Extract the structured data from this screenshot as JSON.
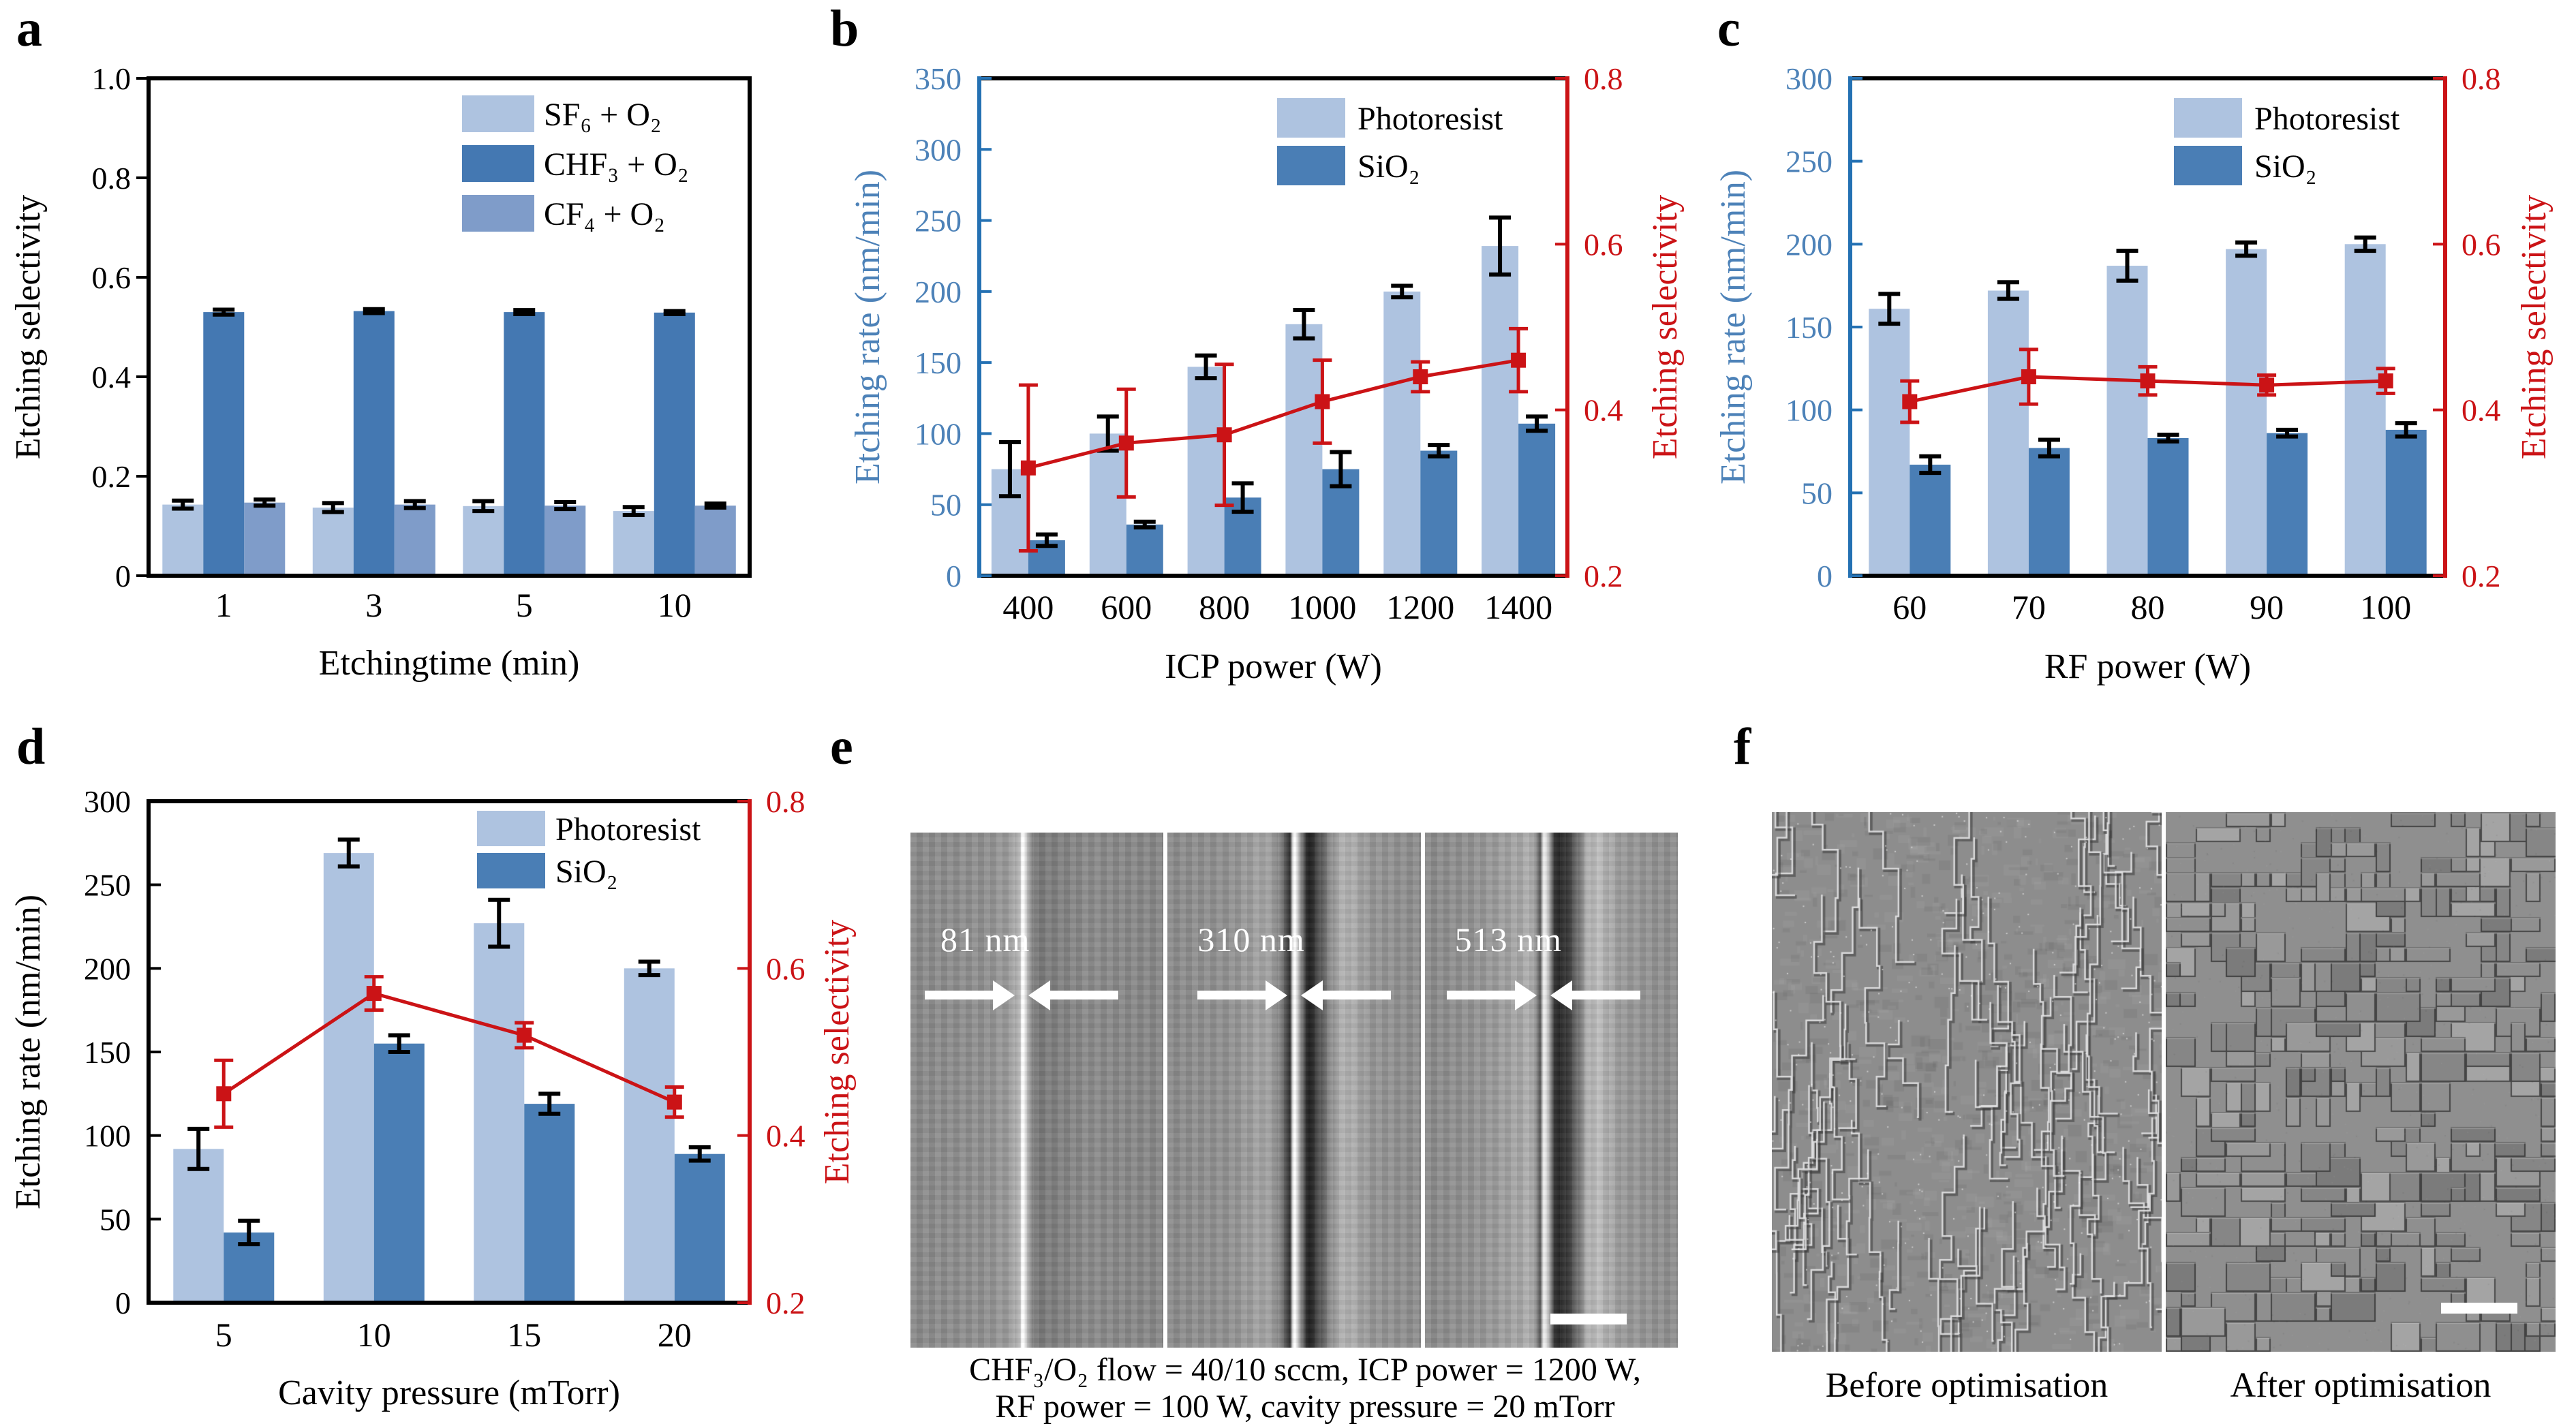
{
  "colors": {
    "photoresist_bar": "#aec3e0",
    "sio2_bar": "#4a7eb5",
    "sf6_bar": "#aec3e0",
    "chf3_bar": "#4478b2",
    "cf4_bar": "#7f9cc9",
    "selectivity_red": "#cb1316",
    "axis_blue_spine": "#2471b3",
    "axis_blue_text": "#4d82b8",
    "axis_black": "#000000"
  },
  "panels": {
    "a": {
      "label": "a"
    },
    "b": {
      "label": "b"
    },
    "c": {
      "label": "c"
    },
    "d": {
      "label": "d"
    },
    "e": {
      "label": "e",
      "measurements": [
        "81 nm",
        "310 nm",
        "513 nm"
      ],
      "caption_line1": "CHF₃/O₂ flow = 40/10 sccm, ICP power = 1200 W,",
      "caption_line2": "RF power = 100 W, cavity pressure = 20 mTorr"
    },
    "f": {
      "label": "f",
      "before_label": "Before optimisation",
      "after_label": "After optimisation"
    }
  },
  "chart_data": [
    {
      "panel": "a",
      "type": "bar",
      "grid": false,
      "legend_position": "upper right",
      "categories": [
        "1",
        "3",
        "5",
        "10"
      ],
      "xlabel": "Etchingtime (min)",
      "left_axis": {
        "label": "Etching selectivity",
        "lim": [
          0,
          1.0
        ],
        "color": "black",
        "ticks": [
          {
            "v": 0,
            "t": "0"
          },
          {
            "v": 0.2,
            "t": "0.2"
          },
          {
            "v": 0.4,
            "t": "0.4"
          },
          {
            "v": 0.6,
            "t": "0.6"
          },
          {
            "v": 0.8,
            "t": "0.8"
          },
          {
            "v": 1.0,
            "t": "1.0"
          }
        ]
      },
      "series": [
        {
          "name": "SF₆ + O₂",
          "color": "sf6_bar",
          "values": [
            0.143,
            0.137,
            0.14,
            0.13
          ],
          "errors": [
            0.008,
            0.009,
            0.01,
            0.008
          ]
        },
        {
          "name": "CHF₃ + O₂",
          "color": "chf3_bar",
          "values": [
            0.53,
            0.532,
            0.53,
            0.529
          ],
          "errors": [
            0.005,
            0.004,
            0.004,
            0.003
          ]
        },
        {
          "name": "CF₄ + O₂",
          "color": "cf4_bar",
          "values": [
            0.147,
            0.143,
            0.141,
            0.141
          ],
          "errors": [
            0.006,
            0.007,
            0.007,
            0.004
          ]
        }
      ]
    },
    {
      "panel": "b",
      "type": "bar+line",
      "grid": false,
      "legend_position": "upper middle",
      "categories": [
        "400",
        "600",
        "800",
        "1000",
        "1200",
        "1400"
      ],
      "xlabel": "ICP power (W)",
      "left_axis": {
        "label": "Etching rate (nm/min)",
        "lim": [
          0,
          350
        ],
        "color": "blue",
        "ticks": [
          {
            "v": 0,
            "t": "0"
          },
          {
            "v": 50,
            "t": "50"
          },
          {
            "v": 100,
            "t": "100"
          },
          {
            "v": 150,
            "t": "150"
          },
          {
            "v": 200,
            "t": "200"
          },
          {
            "v": 250,
            "t": "250"
          },
          {
            "v": 300,
            "t": "300"
          },
          {
            "v": 350,
            "t": "350"
          }
        ]
      },
      "right_axis": {
        "label": "Etching selectivity",
        "lim": [
          0.2,
          0.8
        ],
        "ticks": [
          {
            "v": 0.2,
            "t": "0.2"
          },
          {
            "v": 0.4,
            "t": "0.4"
          },
          {
            "v": 0.6,
            "t": "0.6"
          },
          {
            "v": 0.8,
            "t": "0.8"
          }
        ]
      },
      "series": [
        {
          "name": "Photoresist",
          "color": "photoresist_bar",
          "values": [
            75,
            100,
            147,
            177,
            200,
            232
          ],
          "errors": [
            19,
            12,
            8,
            10,
            4,
            20
          ]
        },
        {
          "name": "SiO₂",
          "color": "sio2_bar",
          "values": [
            25,
            36,
            55,
            75,
            88,
            107
          ],
          "errors": [
            4,
            2,
            10,
            12,
            4,
            5
          ]
        }
      ],
      "line": {
        "name": "Etching selectivity",
        "axis": "right",
        "marker": "square",
        "values": [
          0.33,
          0.36,
          0.37,
          0.41,
          0.44,
          0.46
        ],
        "errors": [
          0.1,
          0.065,
          0.085,
          0.05,
          0.018,
          0.038
        ]
      }
    },
    {
      "panel": "c",
      "type": "bar+line",
      "grid": false,
      "legend_position": "upper middle",
      "categories": [
        "60",
        "70",
        "80",
        "90",
        "100"
      ],
      "xlabel": "RF power (W)",
      "left_axis": {
        "label": "Etching rate (nm/min)",
        "lim": [
          0,
          300
        ],
        "color": "blue",
        "ticks": [
          {
            "v": 0,
            "t": "0"
          },
          {
            "v": 50,
            "t": "50"
          },
          {
            "v": 100,
            "t": "100"
          },
          {
            "v": 150,
            "t": "150"
          },
          {
            "v": 200,
            "t": "200"
          },
          {
            "v": 250,
            "t": "250"
          },
          {
            "v": 300,
            "t": "300"
          }
        ]
      },
      "right_axis": {
        "label": "Etching selectivity",
        "lim": [
          0.2,
          0.8
        ],
        "ticks": [
          {
            "v": 0.2,
            "t": "0.2"
          },
          {
            "v": 0.4,
            "t": "0.4"
          },
          {
            "v": 0.6,
            "t": "0.6"
          },
          {
            "v": 0.8,
            "t": "0.8"
          }
        ]
      },
      "series": [
        {
          "name": "Photoresist",
          "color": "photoresist_bar",
          "values": [
            161,
            172,
            187,
            197,
            200
          ],
          "errors": [
            9,
            5,
            9,
            4,
            4
          ]
        },
        {
          "name": "SiO₂",
          "color": "sio2_bar",
          "values": [
            67,
            77,
            83,
            86,
            88
          ],
          "errors": [
            5,
            5,
            2,
            2,
            4
          ]
        }
      ],
      "line": {
        "name": "Etching selectivity",
        "axis": "right",
        "marker": "square",
        "values": [
          0.41,
          0.44,
          0.435,
          0.43,
          0.435
        ],
        "errors": [
          0.025,
          0.033,
          0.017,
          0.012,
          0.015
        ]
      }
    },
    {
      "panel": "d",
      "type": "bar+line",
      "grid": false,
      "legend_position": "upper middle",
      "categories": [
        "5",
        "10",
        "15",
        "20"
      ],
      "xlabel": "Cavity pressure (mTorr)",
      "left_axis": {
        "label": "Etching rate (nm/min)",
        "lim": [
          0,
          300
        ],
        "color": "black",
        "ticks": [
          {
            "v": 0,
            "t": "0"
          },
          {
            "v": 50,
            "t": "50"
          },
          {
            "v": 100,
            "t": "100"
          },
          {
            "v": 150,
            "t": "150"
          },
          {
            "v": 200,
            "t": "200"
          },
          {
            "v": 250,
            "t": "250"
          },
          {
            "v": 300,
            "t": "300"
          }
        ]
      },
      "right_axis": {
        "label": "Etching selectivity",
        "lim": [
          0.2,
          0.8
        ],
        "ticks": [
          {
            "v": 0.2,
            "t": "0.2"
          },
          {
            "v": 0.4,
            "t": "0.4"
          },
          {
            "v": 0.6,
            "t": "0.6"
          },
          {
            "v": 0.8,
            "t": "0.8"
          }
        ]
      },
      "series": [
        {
          "name": "Photoresist",
          "color": "photoresist_bar",
          "values": [
            92,
            269,
            227,
            200
          ],
          "errors": [
            12,
            8,
            14,
            4
          ]
        },
        {
          "name": "SiO₂",
          "color": "sio2_bar",
          "values": [
            42,
            155,
            119,
            89
          ],
          "errors": [
            7,
            5,
            6,
            4
          ]
        }
      ],
      "line": {
        "name": "Etching selectivity",
        "axis": "right",
        "marker": "square",
        "values": [
          0.45,
          0.57,
          0.52,
          0.44
        ],
        "errors": [
          0.04,
          0.02,
          0.015,
          0.018
        ]
      }
    }
  ]
}
